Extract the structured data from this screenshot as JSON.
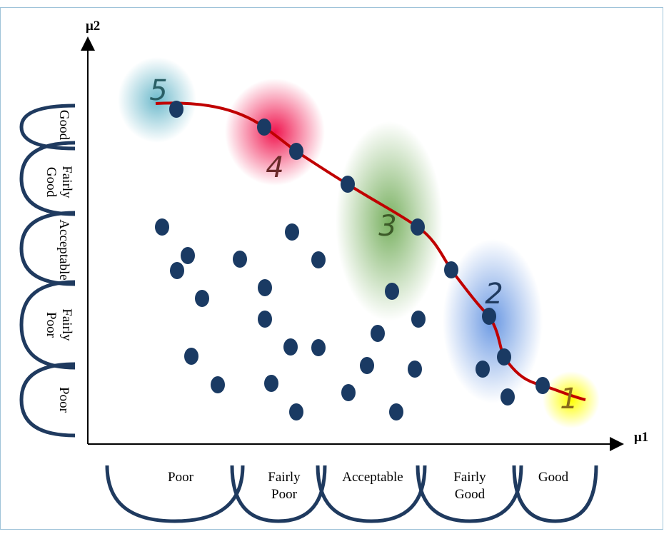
{
  "axes": {
    "y_label": "μ2",
    "x_label": "μ1"
  },
  "y_sets": [
    [
      "Good"
    ],
    [
      "Fairly",
      "Good"
    ],
    [
      "Acceptable"
    ],
    [
      "Fairly",
      "Poor"
    ],
    [
      "Poor"
    ]
  ],
  "x_sets": [
    [
      "Poor"
    ],
    [
      "Fairly",
      "Poor"
    ],
    [
      "Acceptable"
    ],
    [
      "Fairly",
      "Good"
    ],
    [
      "Good"
    ]
  ],
  "regions": [
    "5",
    "4",
    "3",
    "2",
    "1"
  ]
}
